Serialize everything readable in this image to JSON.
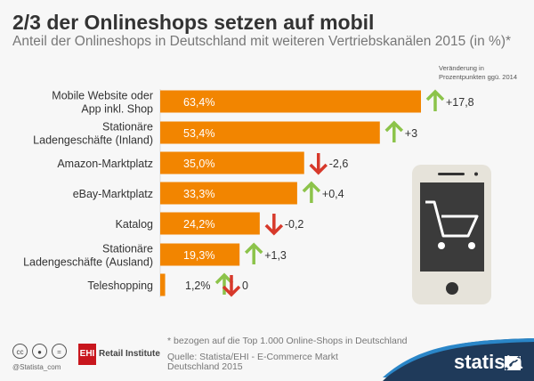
{
  "chart_data": {
    "type": "bar",
    "orientation": "horizontal",
    "title": "2/3 der Onlineshops setzen auf mobil",
    "subtitle": "Anteil der Onlineshops in Deutschland mit weiteren Vertriebskanälen 2015 (in %)*",
    "change_note": [
      "Veränderung in",
      "Prozentpunkten ggü. 2014"
    ],
    "categories": [
      [
        "Mobile Website oder",
        "App inkl. Shop"
      ],
      [
        "Stationäre",
        "Ladengeschäfte (Inland)"
      ],
      [
        "Amazon-Marktplatz"
      ],
      [
        "eBay-Marktplatz"
      ],
      [
        "Katalog"
      ],
      [
        "Stationäre",
        "Ladengeschäfte (Ausland)"
      ],
      [
        "Teleshopping"
      ]
    ],
    "values": [
      63.4,
      53.4,
      35.0,
      33.3,
      24.2,
      19.3,
      1.2
    ],
    "value_labels": [
      "63,4%",
      "53,4%",
      "35,0%",
      "33,3%",
      "24,2%",
      "19,3%",
      "1,2%"
    ],
    "changes": [
      17.8,
      3,
      -2.6,
      0.4,
      -0.2,
      1.3,
      0
    ],
    "change_labels": [
      "+17,8",
      "+3",
      "-2,6",
      "+0,4",
      "-0,2",
      "+1,3",
      "0"
    ],
    "xlim": [
      0,
      63.4
    ],
    "grid": false,
    "colors": {
      "bar": "#f28500",
      "up": "#8cc34a",
      "down": "#d7392b"
    }
  },
  "footer": {
    "footnote": "* bezogen auf die Top 1.000 Online-Shops in Deutschland",
    "source": "Quelle: Statista/EHI - E-Commerce Markt Deutschland 2015",
    "handle": "@Statista_com",
    "partner_logo": "EHI Retail Institute",
    "brand": "statista",
    "license_icons": [
      "cc",
      "by",
      "nd"
    ]
  },
  "icons": {
    "illustration": "smartphone-shopping-cart-icon"
  }
}
